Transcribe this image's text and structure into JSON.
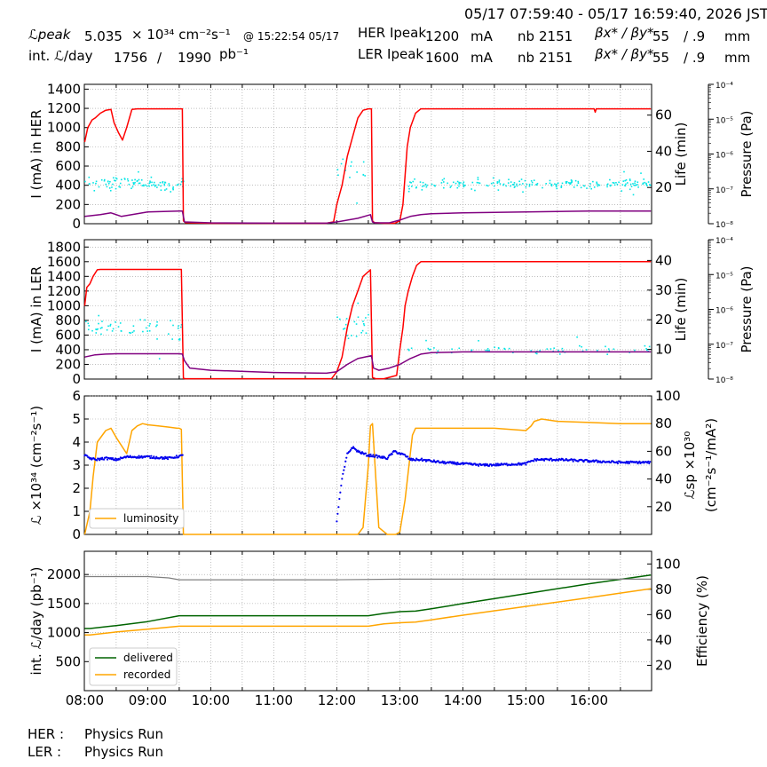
{
  "header": {
    "time_range": "05/17 07:59:40 - 05/17 16:59:40, 2026 JST",
    "lpeak_label": "ℒpeak",
    "lpeak_value": "5.035",
    "lpeak_unit": "× 10³⁴ cm⁻²s⁻¹",
    "lpeak_time": "@ 15:22:54 05/17",
    "intl_label": "int. ℒ/day",
    "intl_value1": "1756",
    "intl_sep": "/",
    "intl_value2": "1990",
    "intl_unit": "pb⁻¹",
    "her_label": "HER Ipeak",
    "her_ipeak": "1200",
    "her_unit": "mA",
    "ler_label": "LER Ipeak",
    "ler_ipeak": "1600",
    "ler_unit": "mA",
    "nb_label": "nb",
    "her_nb": "2151",
    "ler_nb": "2151",
    "beta_label": "βx* / βy*",
    "her_beta_x": "55",
    "her_beta_y": "/ .9",
    "ler_beta_x": "55",
    "ler_beta_y": "/ .9",
    "beta_unit": "mm"
  },
  "footer": {
    "her_label": "HER :",
    "her_status": "Physics Run",
    "ler_label": "LER :",
    "ler_status": "Physics Run"
  },
  "colors": {
    "current": "#ff0000",
    "life": "#00e5e5",
    "purple": "#800080",
    "luminosity": "#ffa500",
    "specific": "#0000ee",
    "delivered": "#006400",
    "recorded": "#ffa500",
    "efficiency": "#808080"
  },
  "chart_data": [
    {
      "type": "line",
      "panel": "HER",
      "ylabel": "I (mA) in HER",
      "ylabel_right": "Life (min)",
      "ylabel_pressure": "Pressure (Pa)",
      "ylim": [
        0,
        1450
      ],
      "yticks": [
        0,
        200,
        400,
        600,
        800,
        1000,
        1200,
        1400
      ],
      "ylim_right": [
        0,
        77
      ],
      "yticks_right": [
        20,
        40,
        60
      ],
      "pressure_ticks": [
        "10⁻⁸",
        "10⁻⁷",
        "10⁻⁶",
        "10⁻⁵",
        "10⁻⁴"
      ],
      "grid": true,
      "series": [
        {
          "role": "current",
          "x": [
            "08:00",
            "08:03",
            "08:07",
            "08:10",
            "08:15",
            "08:20",
            "08:25",
            "08:28",
            "08:32",
            "08:36",
            "08:40",
            "08:45",
            "08:50",
            "09:00",
            "09:10",
            "09:20",
            "09:30",
            "09:33",
            "09:34",
            "09:36",
            "10:00",
            "11:00",
            "11:50",
            "11:57",
            "12:00",
            "12:05",
            "12:10",
            "12:15",
            "12:20",
            "12:25",
            "12:30",
            "12:33",
            "12:34",
            "12:36",
            "12:45",
            "12:55",
            "13:00",
            "13:03",
            "13:05",
            "13:07",
            "13:10",
            "13:15",
            "13:20",
            "13:30",
            "14:00",
            "15:00",
            "15:30",
            "16:00",
            "16:05",
            "16:06",
            "16:07",
            "16:10",
            "16:59"
          ],
          "y": [
            850,
            1000,
            1080,
            1100,
            1150,
            1180,
            1190,
            1050,
            950,
            870,
            1000,
            1190,
            1195,
            1195,
            1195,
            1195,
            1195,
            1195,
            30,
            10,
            5,
            5,
            5,
            20,
            200,
            400,
            700,
            900,
            1100,
            1180,
            1195,
            1195,
            30,
            10,
            5,
            5,
            30,
            200,
            500,
            800,
            1000,
            1150,
            1195,
            1195,
            1195,
            1195,
            1195,
            1195,
            1195,
            1160,
            1195,
            1195,
            1195
          ]
        },
        {
          "role": "purple",
          "x": [
            "08:00",
            "08:15",
            "08:25",
            "08:35",
            "09:00",
            "09:30",
            "09:33",
            "09:35",
            "10:00",
            "11:00",
            "11:50",
            "12:00",
            "12:20",
            "12:32",
            "12:34",
            "12:36",
            "12:50",
            "13:00",
            "13:10",
            "13:20",
            "13:30",
            "14:00",
            "15:00",
            "16:00",
            "16:59"
          ],
          "y": [
            4,
            5,
            6,
            4,
            6.5,
            7,
            7,
            1,
            0.5,
            0.3,
            0.3,
            1,
            3,
            5,
            1,
            0.5,
            0.5,
            2,
            4,
            5,
            5.5,
            6,
            6.5,
            7,
            7
          ]
        }
      ],
      "life_scatter": {
        "groups": [
          {
            "from": "08:00",
            "to": "09:35",
            "center": 22,
            "spread": 5,
            "count": 95
          },
          {
            "from": "12:00",
            "to": "12:32",
            "center": 30,
            "spread": 12,
            "count": 14
          },
          {
            "from": "13:08",
            "to": "16:59",
            "center": 22,
            "spread": 4,
            "count": 190
          }
        ]
      }
    },
    {
      "type": "line",
      "panel": "LER",
      "ylabel": "I (mA) in LER",
      "ylabel_right": "Life (min)",
      "ylabel_pressure": "Pressure (Pa)",
      "ylim": [
        0,
        1900
      ],
      "yticks": [
        0,
        200,
        400,
        600,
        800,
        1000,
        1200,
        1400,
        1600,
        1800
      ],
      "ylim_right": [
        0,
        47
      ],
      "yticks_right": [
        10,
        20,
        30,
        40
      ],
      "pressure_ticks": [
        "10⁻⁸",
        "10⁻⁷",
        "10⁻⁶",
        "10⁻⁵",
        "10⁻⁴"
      ],
      "grid": true,
      "series": [
        {
          "role": "current",
          "x": [
            "08:00",
            "08:02",
            "08:05",
            "08:08",
            "08:12",
            "08:15",
            "09:00",
            "09:20",
            "09:30",
            "09:32",
            "09:34",
            "09:36",
            "10:00",
            "11:00",
            "11:55",
            "12:00",
            "12:05",
            "12:10",
            "12:15",
            "12:20",
            "12:25",
            "12:32",
            "12:34",
            "12:37",
            "12:45",
            "12:57",
            "13:00",
            "13:03",
            "13:05",
            "13:08",
            "13:12",
            "13:16",
            "13:20",
            "13:30",
            "14:00",
            "15:00",
            "16:00",
            "16:59"
          ],
          "y": [
            1000,
            1250,
            1300,
            1400,
            1490,
            1495,
            1495,
            1495,
            1495,
            1495,
            10,
            5,
            5,
            5,
            5,
            100,
            300,
            700,
            1000,
            1200,
            1400,
            1490,
            20,
            5,
            5,
            50,
            400,
            700,
            1000,
            1200,
            1400,
            1550,
            1600,
            1600,
            1600,
            1600,
            1600,
            1600
          ]
        },
        {
          "role": "purple",
          "x": [
            "08:00",
            "08:10",
            "08:20",
            "08:30",
            "09:00",
            "09:30",
            "09:33",
            "09:35",
            "09:40",
            "10:00",
            "11:00",
            "11:50",
            "12:00",
            "12:05",
            "12:10",
            "12:20",
            "12:30",
            "12:33",
            "12:35",
            "12:40",
            "12:50",
            "13:00",
            "13:10",
            "13:20",
            "13:30",
            "14:00",
            "15:00",
            "16:00",
            "16:59"
          ],
          "y": [
            300,
            330,
            340,
            345,
            345,
            345,
            340,
            250,
            150,
            120,
            90,
            80,
            100,
            150,
            200,
            280,
            310,
            320,
            150,
            120,
            150,
            200,
            280,
            340,
            360,
            370,
            370,
            370,
            370
          ]
        }
      ],
      "life_scatter": {
        "groups": [
          {
            "from": "08:00",
            "to": "09:35",
            "center": 17,
            "spread": 5,
            "count": 55
          },
          {
            "from": "12:00",
            "to": "12:32",
            "center": 18,
            "spread": 7,
            "count": 22
          },
          {
            "from": "13:08",
            "to": "16:59",
            "center": 10,
            "spread": 2,
            "count": 60
          }
        ]
      }
    },
    {
      "type": "line",
      "panel": "Luminosity",
      "ylabel": "ℒ ×10³⁴ (cm⁻²s⁻¹)",
      "ylabel_right": "ℒsp ×10³⁰",
      "ylabel_right2": "(cm⁻²s⁻¹/mA²)",
      "ylim": [
        0,
        6
      ],
      "yticks": [
        0,
        1,
        2,
        3,
        4,
        5,
        6
      ],
      "ylim_right": [
        0,
        100
      ],
      "yticks_right": [
        20,
        40,
        60,
        80,
        100
      ],
      "grid": true,
      "legend": "lower-left",
      "series": [
        {
          "name": "luminosity",
          "role": "luminosity",
          "x": [
            "08:00",
            "08:05",
            "08:08",
            "08:12",
            "08:20",
            "08:25",
            "08:30",
            "08:40",
            "08:45",
            "08:50",
            "08:55",
            "09:00",
            "09:10",
            "09:20",
            "09:28",
            "09:30",
            "09:32",
            "09:34",
            "09:36",
            "10:00",
            "11:00",
            "12:00",
            "12:10",
            "12:20",
            "12:25",
            "12:30",
            "12:32",
            "12:34",
            "12:40",
            "12:48",
            "12:52",
            "12:56",
            "13:00",
            "13:05",
            "13:10",
            "13:12",
            "13:15",
            "13:20",
            "13:30",
            "14:00",
            "14:30",
            "15:00",
            "15:05",
            "15:08",
            "15:15",
            "15:30",
            "16:00",
            "16:30",
            "16:59"
          ],
          "y": [
            0,
            1.0,
            2.5,
            4.0,
            4.5,
            4.6,
            4.2,
            3.5,
            4.5,
            4.7,
            4.8,
            4.75,
            4.7,
            4.65,
            4.6,
            4.6,
            4.55,
            0,
            0,
            0,
            0,
            0,
            0,
            0,
            0.3,
            3.0,
            4.7,
            4.8,
            0.3,
            0,
            0,
            0,
            0.1,
            1.5,
            3.5,
            4.3,
            4.6,
            4.6,
            4.6,
            4.6,
            4.6,
            4.5,
            4.7,
            4.9,
            5.0,
            4.9,
            4.85,
            4.8,
            4.8
          ]
        },
        {
          "role": "specific",
          "x": [
            "08:00",
            "08:05",
            "08:10",
            "08:20",
            "08:30",
            "08:40",
            "09:00",
            "09:20",
            "09:34",
            "12:00",
            "12:05",
            "12:10",
            "12:15",
            "12:20",
            "12:30",
            "12:33",
            "12:48",
            "12:52",
            "12:55",
            "13:05",
            "13:10",
            "13:20",
            "13:40",
            "14:00",
            "14:20",
            "15:00",
            "15:05",
            "15:10",
            "15:30",
            "16:00",
            "16:30",
            "16:59"
          ],
          "y": [
            57,
            55,
            54,
            55,
            54,
            56,
            56,
            55,
            57,
            10,
            40,
            58,
            63,
            60,
            57,
            57,
            55,
            58,
            60,
            57,
            54,
            54,
            52,
            51,
            50,
            51,
            53,
            54,
            54,
            53,
            52,
            52
          ]
        }
      ]
    },
    {
      "type": "line",
      "panel": "Integrated",
      "ylabel": "int. ℒ/day (pb⁻¹)",
      "ylabel_right": "Efficiency (%)",
      "ylim": [
        0,
        2400
      ],
      "yticks": [
        500,
        1000,
        1500,
        2000
      ],
      "ylim_right": [
        0,
        110
      ],
      "yticks_right": [
        20,
        40,
        60,
        80,
        100
      ],
      "xticks": [
        "08:00",
        "09:00",
        "10:00",
        "11:00",
        "12:00",
        "13:00",
        "14:00",
        "15:00",
        "16:00"
      ],
      "grid": true,
      "legend": "lower-left",
      "series": [
        {
          "name": "delivered",
          "role": "delivered",
          "x": [
            "08:00",
            "08:05",
            "08:30",
            "09:00",
            "09:30",
            "10:00",
            "11:00",
            "12:00",
            "12:30",
            "12:45",
            "13:00",
            "13:15",
            "13:30",
            "14:00",
            "15:00",
            "16:00",
            "16:59"
          ],
          "y": [
            1070,
            1070,
            1120,
            1190,
            1290,
            1290,
            1290,
            1290,
            1290,
            1330,
            1360,
            1370,
            1410,
            1500,
            1670,
            1840,
            1990
          ]
        },
        {
          "name": "recorded",
          "role": "recorded",
          "x": [
            "08:00",
            "08:05",
            "08:30",
            "09:00",
            "09:30",
            "10:00",
            "11:00",
            "12:00",
            "12:30",
            "12:45",
            "13:00",
            "13:15",
            "13:30",
            "14:00",
            "15:00",
            "16:00",
            "16:59"
          ],
          "y": [
            960,
            960,
            1010,
            1060,
            1110,
            1110,
            1110,
            1110,
            1110,
            1150,
            1170,
            1180,
            1220,
            1300,
            1450,
            1600,
            1756
          ]
        },
        {
          "role": "efficiency",
          "x": [
            "08:00",
            "08:30",
            "09:00",
            "09:20",
            "09:30",
            "10:00",
            "11:00",
            "12:00",
            "13:00",
            "14:00",
            "15:00",
            "16:00",
            "16:59"
          ],
          "y": [
            90,
            90,
            90,
            89,
            87.5,
            87.5,
            87.5,
            87.5,
            88,
            88,
            88,
            88,
            88
          ]
        }
      ]
    }
  ]
}
